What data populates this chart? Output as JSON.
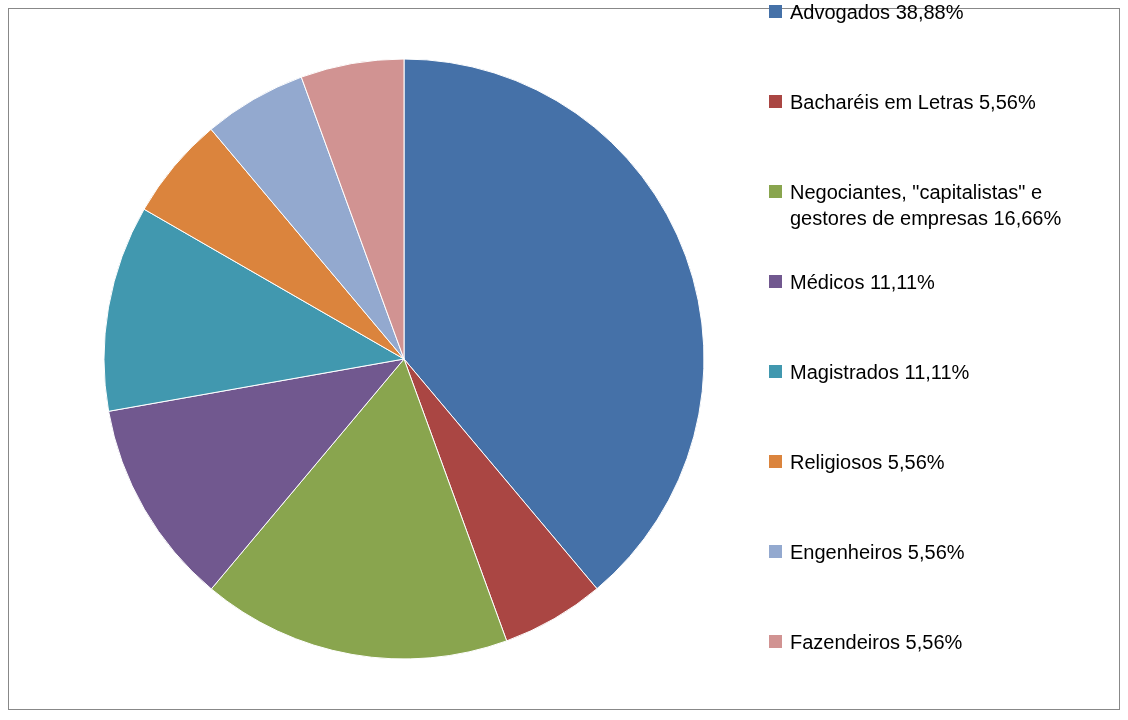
{
  "chart_data": {
    "type": "pie",
    "categories": [
      "Advogados",
      "Bacharéis em Letras",
      "Negociantes, \"capitalistas\" e gestores de empresas",
      "Médicos",
      "Magistrados",
      "Religiosos",
      "Engenheiros",
      "Fazendeiros"
    ],
    "values": [
      38.88,
      5.56,
      16.66,
      11.11,
      11.11,
      5.56,
      5.56,
      5.56
    ],
    "value_labels": [
      "38,88%",
      "5,56%",
      "16,66%",
      "11,11%",
      "11,11%",
      "5,56%",
      "5,56%",
      "5,56%"
    ],
    "colors": [
      "#4571a8",
      "#aa4643",
      "#89a54e",
      "#71588f",
      "#4198af",
      "#db843d",
      "#93a9cf",
      "#d19392"
    ],
    "legend": "right"
  }
}
